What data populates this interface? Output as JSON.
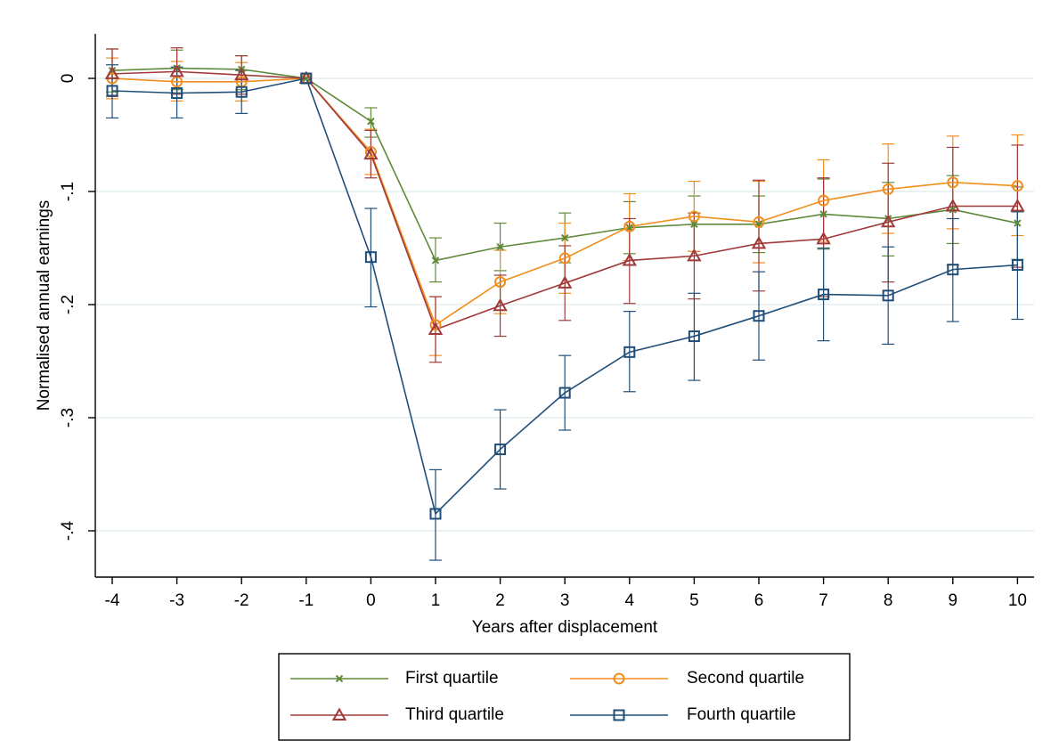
{
  "chart_data": {
    "type": "line",
    "xlabel": "Years after displacement",
    "ylabel": "Normalised annual earnings",
    "x": [
      -4,
      -3,
      -2,
      -1,
      0,
      1,
      2,
      3,
      4,
      5,
      6,
      7,
      8,
      9,
      10
    ],
    "x_tick_labels": [
      "-4",
      "-3",
      "-2",
      "-1",
      "0",
      "1",
      "2",
      "3",
      "4",
      "5",
      "6",
      "7",
      "8",
      "9",
      "10"
    ],
    "xlim": [
      -4.2,
      10.2
    ],
    "ylim": [
      -0.44,
      0.04
    ],
    "y_ticks": [
      0,
      -0.1,
      -0.2,
      -0.3,
      -0.4
    ],
    "y_tick_labels": [
      "0",
      "-.1",
      "-.2",
      "-.3",
      "-.4"
    ],
    "grid": "horizontal",
    "legend_position": "bottom",
    "series": [
      {
        "name": "First quartile",
        "color": "#5f8a3a",
        "marker": "x",
        "values": [
          0.007,
          0.009,
          0.008,
          0.0,
          -0.038,
          -0.161,
          -0.149,
          -0.141,
          -0.132,
          -0.129,
          -0.129,
          -0.12,
          -0.124,
          -0.116,
          -0.128
        ],
        "ci_low": [
          -0.012,
          -0.01,
          -0.01,
          0.0,
          -0.052,
          -0.18,
          -0.17,
          -0.163,
          -0.155,
          -0.153,
          -0.154,
          -0.151,
          -0.157,
          -0.146,
          -0.16
        ],
        "ci_high": [
          0.026,
          0.025,
          0.02,
          0.0,
          -0.026,
          -0.141,
          -0.128,
          -0.119,
          -0.109,
          -0.104,
          -0.104,
          -0.089,
          -0.092,
          -0.086,
          -0.096
        ]
      },
      {
        "name": "Second quartile",
        "color": "#f28e1c",
        "marker": "circle",
        "values": [
          0.0,
          -0.003,
          -0.003,
          0.0,
          -0.065,
          -0.218,
          -0.18,
          -0.159,
          -0.131,
          -0.122,
          -0.127,
          -0.108,
          -0.098,
          -0.092,
          -0.095
        ],
        "ci_low": [
          -0.018,
          -0.02,
          -0.02,
          0.0,
          -0.085,
          -0.245,
          -0.208,
          -0.19,
          -0.161,
          -0.153,
          -0.163,
          -0.144,
          -0.137,
          -0.133,
          -0.139
        ],
        "ci_high": [
          0.018,
          0.015,
          0.014,
          0.0,
          -0.045,
          -0.193,
          -0.152,
          -0.128,
          -0.102,
          -0.091,
          -0.091,
          -0.072,
          -0.058,
          -0.051,
          -0.05
        ]
      },
      {
        "name": "Third quartile",
        "color": "#a03a3a",
        "marker": "triangle",
        "values": [
          0.004,
          0.006,
          0.003,
          0.0,
          -0.067,
          -0.222,
          -0.201,
          -0.181,
          -0.161,
          -0.157,
          -0.146,
          -0.142,
          -0.127,
          -0.113,
          -0.113
        ],
        "ci_low": [
          -0.016,
          -0.014,
          -0.014,
          0.0,
          -0.088,
          -0.251,
          -0.228,
          -0.214,
          -0.199,
          -0.195,
          -0.188,
          -0.193,
          -0.18,
          -0.165,
          -0.167
        ],
        "ci_high": [
          0.026,
          0.027,
          0.02,
          0.0,
          -0.046,
          -0.193,
          -0.174,
          -0.148,
          -0.124,
          -0.119,
          -0.09,
          -0.088,
          -0.075,
          -0.061,
          -0.059
        ]
      },
      {
        "name": "Fourth quartile",
        "color": "#1f4e79",
        "marker": "square",
        "values": [
          -0.011,
          -0.013,
          -0.012,
          0.0,
          -0.158,
          -0.385,
          -0.328,
          -0.278,
          -0.242,
          -0.228,
          -0.21,
          -0.191,
          -0.192,
          -0.169,
          -0.165
        ],
        "ci_low": [
          -0.035,
          -0.035,
          -0.031,
          0.0,
          -0.202,
          -0.426,
          -0.363,
          -0.311,
          -0.277,
          -0.267,
          -0.249,
          -0.232,
          -0.235,
          -0.215,
          -0.213
        ],
        "ci_high": [
          0.012,
          0.01,
          0.007,
          0.0,
          -0.115,
          -0.346,
          -0.293,
          -0.245,
          -0.206,
          -0.19,
          -0.171,
          -0.15,
          -0.149,
          -0.124,
          -0.118
        ]
      }
    ]
  }
}
